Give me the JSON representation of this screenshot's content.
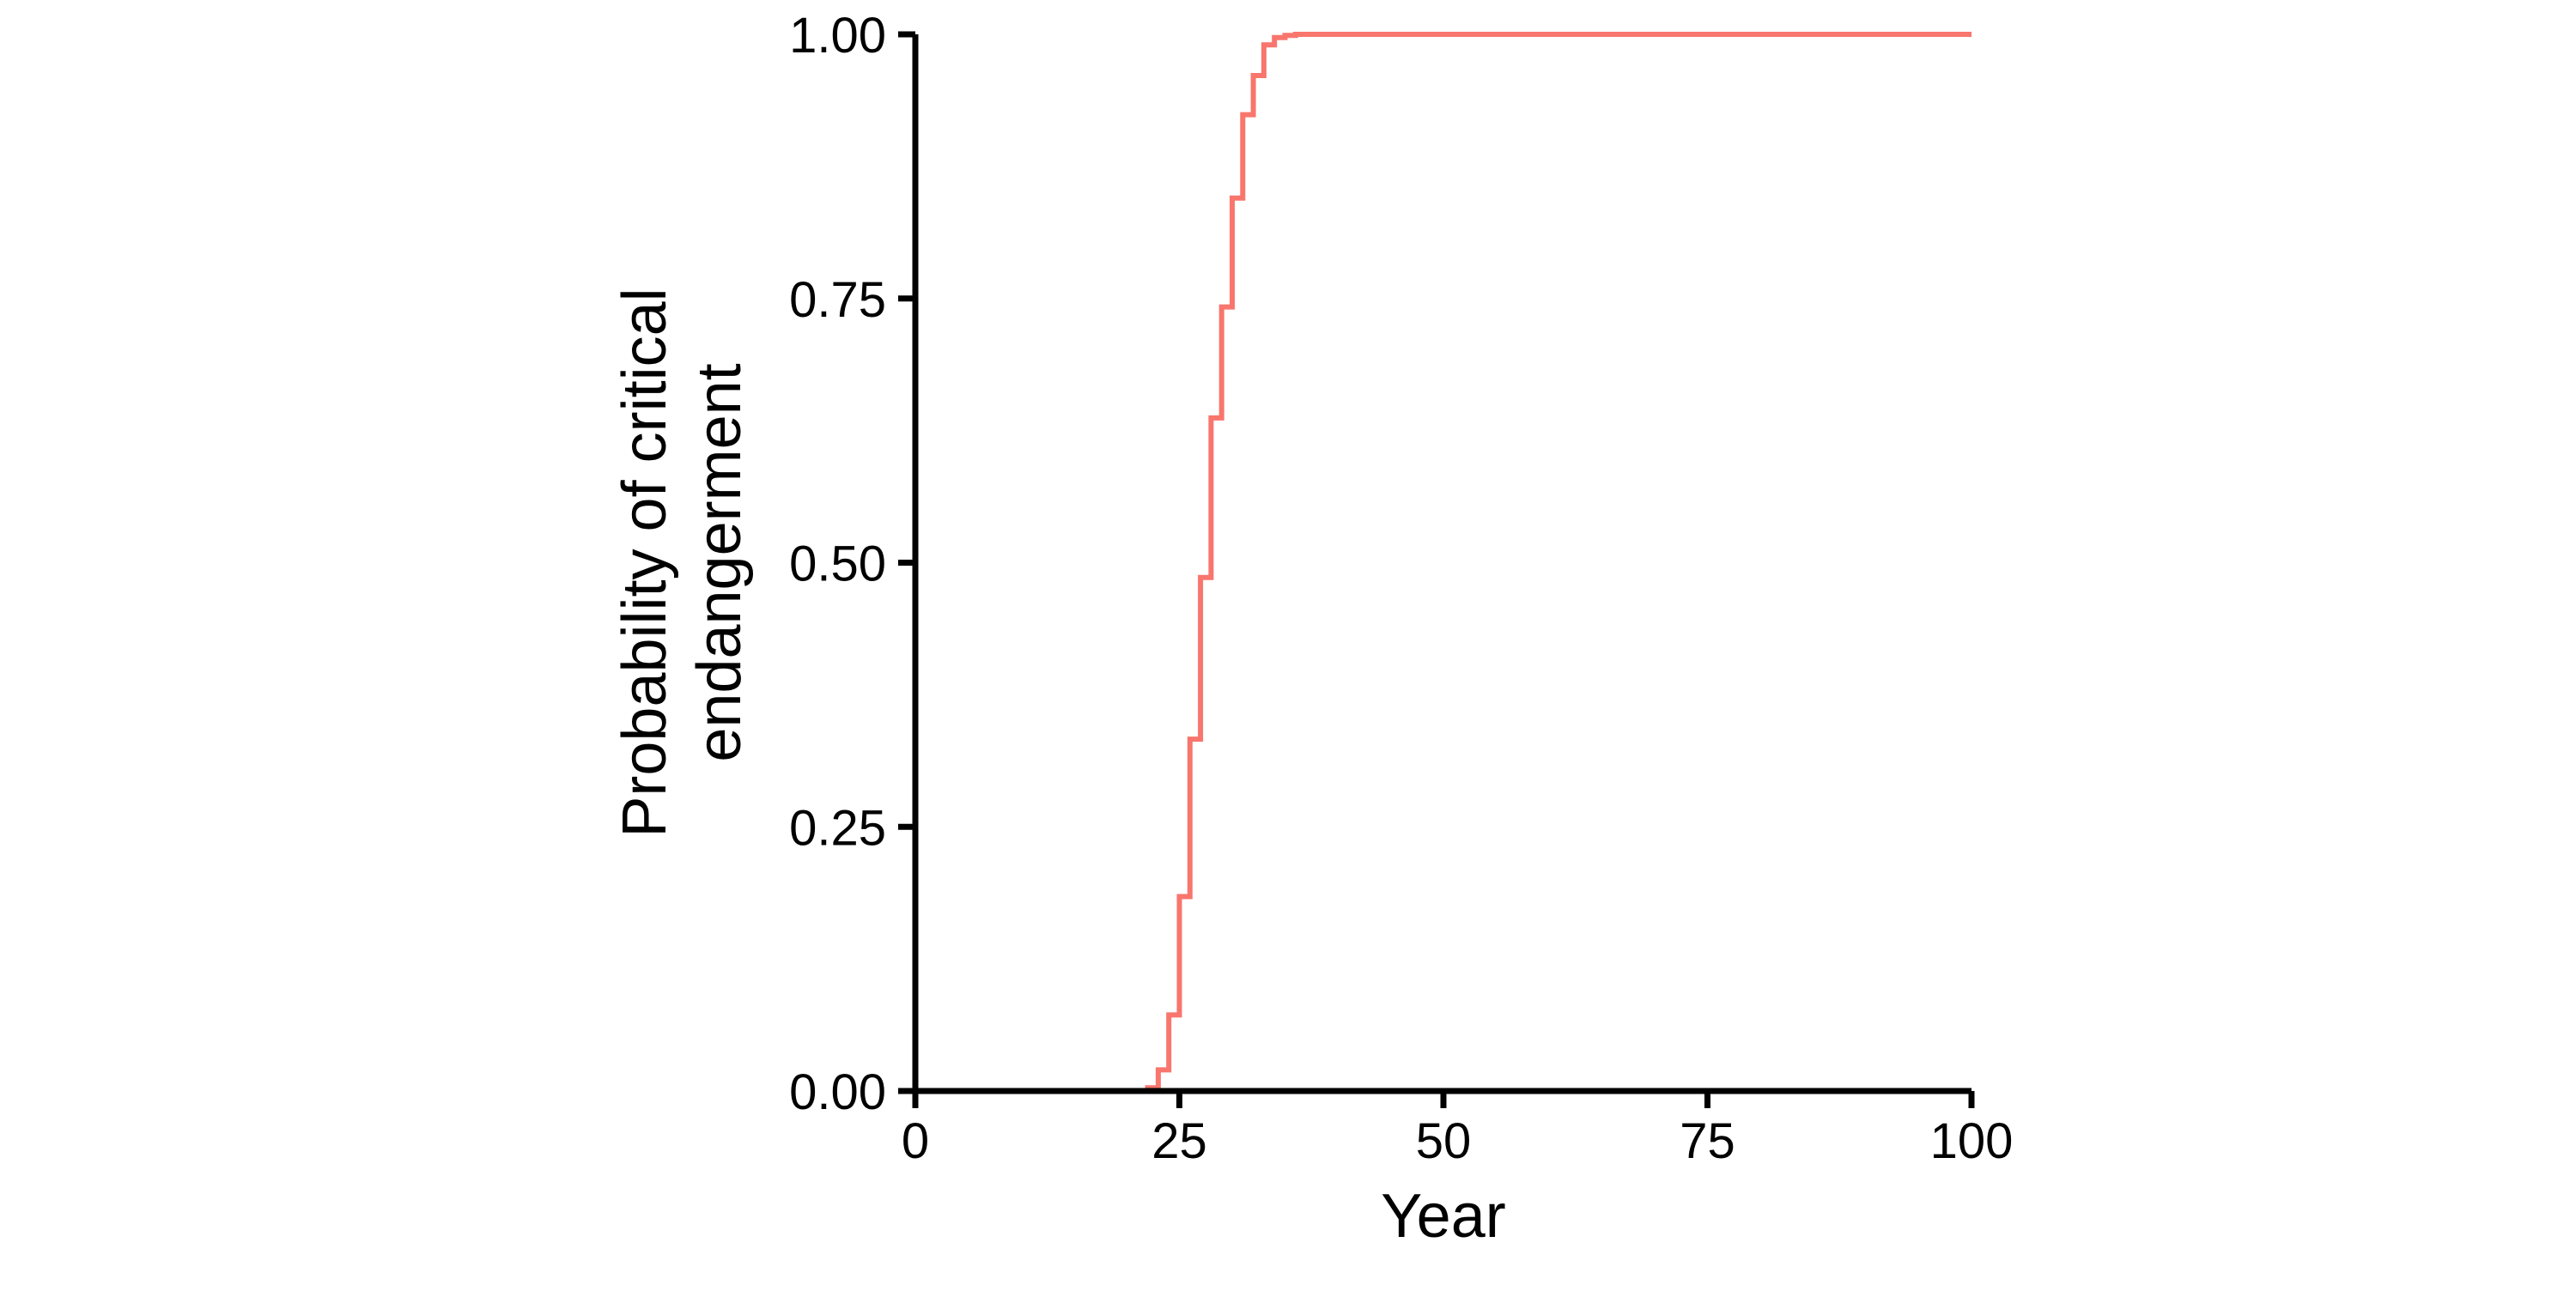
{
  "chart_data": {
    "type": "line",
    "step": true,
    "title": "",
    "xlabel": "Year",
    "ylabel": [
      "Probability of critical",
      "endangerment"
    ],
    "xlim": [
      0,
      100
    ],
    "ylim": [
      0,
      1
    ],
    "xticks": [
      0,
      25,
      50,
      75,
      100
    ],
    "xtick_labels": [
      "0",
      "25",
      "50",
      "75",
      "100"
    ],
    "yticks": [
      0,
      0.25,
      0.5,
      0.75,
      1
    ],
    "ytick_labels": [
      "0.00",
      "0.25",
      "0.50",
      "0.75",
      "1.00"
    ],
    "grid": false,
    "legend": "none",
    "series": [
      {
        "color": "#F8766D",
        "x": [
          0,
          21,
          22,
          23,
          24,
          25,
          26,
          27,
          28,
          29,
          30,
          31,
          32,
          33,
          34,
          35,
          36,
          100
        ],
        "y": [
          0,
          0,
          0.003,
          0.02,
          0.072,
          0.184,
          0.333,
          0.486,
          0.637,
          0.742,
          0.845,
          0.924,
          0.961,
          0.99,
          0.997,
          0.999,
          1.0,
          1.0
        ]
      }
    ]
  }
}
